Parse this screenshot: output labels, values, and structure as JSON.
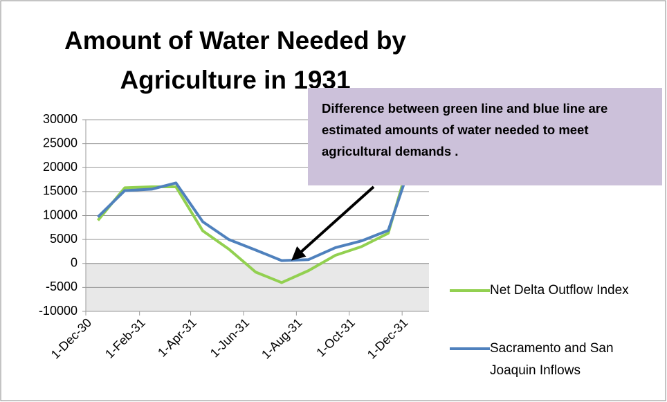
{
  "chart_data": {
    "type": "line",
    "title": "Amount of Water Needed by Agriculture in 1931",
    "annotation": "Difference between green line and blue line are estimated amounts of water needed to meet agricultural demands .",
    "x": [
      "1930-12-15",
      "1931-01-15",
      "1931-02-15",
      "1931-03-15",
      "1931-04-15",
      "1931-05-15",
      "1931-06-15",
      "1931-07-15",
      "1931-08-15",
      "1931-09-15",
      "1931-10-15",
      "1931-11-15",
      "1931-12-15"
    ],
    "xlim": [
      "1930-12-01",
      "1932-01-01"
    ],
    "xticks": [
      {
        "value": "1930-12-01",
        "label": "1-Dec-30"
      },
      {
        "value": "1931-02-01",
        "label": "1-Feb-31"
      },
      {
        "value": "1931-04-01",
        "label": "1-Apr-31"
      },
      {
        "value": "1931-06-01",
        "label": "1-Jun-31"
      },
      {
        "value": "1931-08-01",
        "label": "1-Aug-31"
      },
      {
        "value": "1931-10-01",
        "label": "1-Oct-31"
      },
      {
        "value": "1931-12-01",
        "label": "1-Dec-31"
      }
    ],
    "ylim": [
      -10000,
      30000
    ],
    "yticks": [
      -10000,
      -5000,
      0,
      5000,
      10000,
      15000,
      20000,
      25000,
      30000
    ],
    "grid": true,
    "legend": "right",
    "series": [
      {
        "name": "Net Delta Outflow Index",
        "color": "#92d050",
        "values": [
          9000,
          15800,
          16000,
          16000,
          6800,
          3000,
          -1800,
          -4000,
          -1500,
          1700,
          3500,
          6300,
          25000
        ]
      },
      {
        "name": "Sacramento and San Joaquin Inflows",
        "color": "#4f81bd",
        "values": [
          9700,
          15200,
          15500,
          16800,
          8700,
          5000,
          2800,
          600,
          800,
          3300,
          4700,
          6900,
          23000
        ]
      }
    ]
  }
}
